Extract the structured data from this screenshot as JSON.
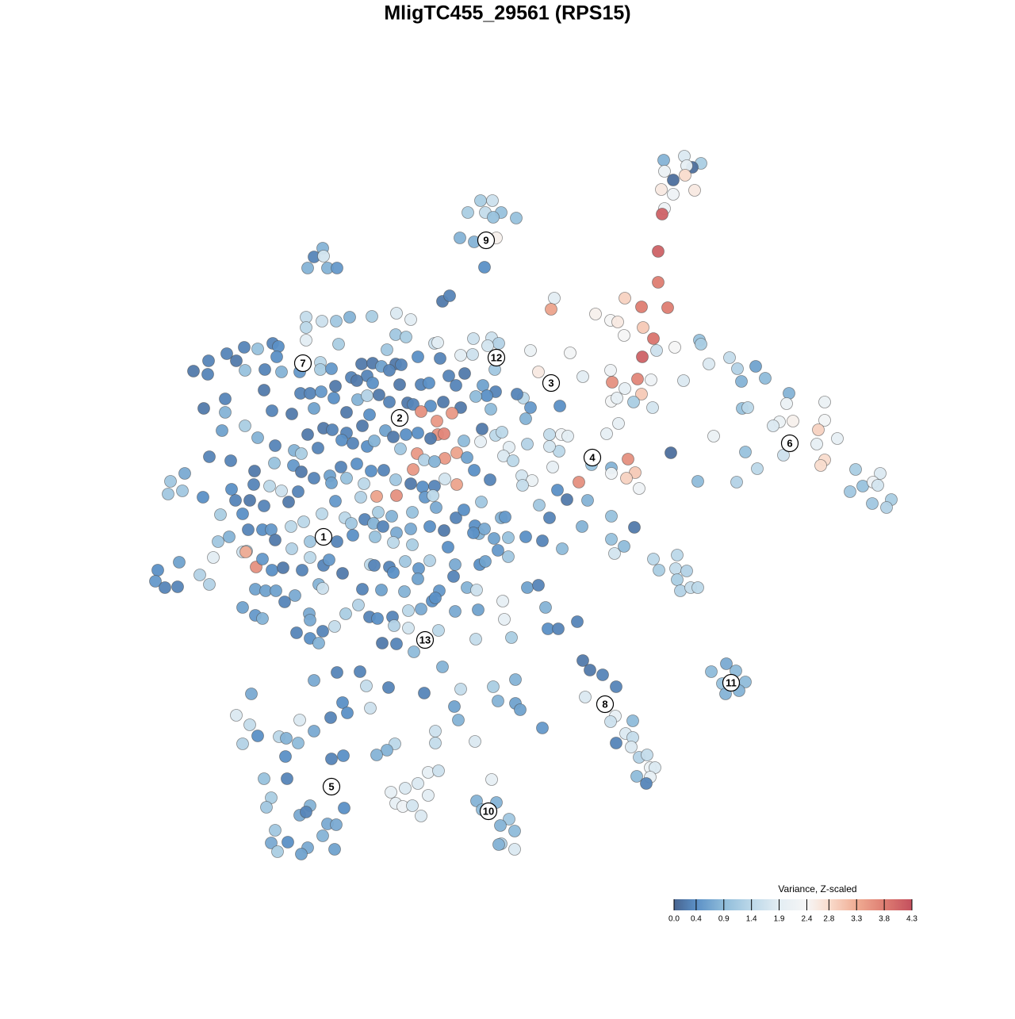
{
  "chart_data": {
    "type": "scatter",
    "title": "MligTC455_29561 (RPS15)",
    "xlim": [
      180,
      1150
    ],
    "ylim": [
      1100,
      170
    ],
    "x": [
      837,
      863,
      884,
      873,
      838,
      866,
      849,
      864,
      834,
      849,
      876,
      838,
      835,
      830,
      830,
      809,
      842,
      788,
      811,
      824,
      828,
      851,
      810,
      770,
      751,
      779,
      787,
      699,
      695,
      669,
      719,
      679,
      735,
      770,
      772,
      804,
      821,
      809,
      788,
      799,
      771,
      778,
      823,
      780,
      765,
      862,
      882,
      884,
      894,
      920,
      930,
      953,
      935,
      965,
      936,
      943,
      995,
      992,
      1040,
      983,
      975,
      1000,
      1040,
      1032,
      1056,
      995,
      988,
      1030,
      940,
      1040,
      1035,
      900,
      955,
      929,
      880,
      1079,
      1088,
      1110,
      1101,
      1107,
      1072,
      1124,
      1118,
      1100,
      746,
      771,
      771,
      792,
      801,
      790,
      806,
      730,
      741,
      703,
      715,
      693,
      708,
      716,
      705,
      693,
      697,
      665,
      660,
      652,
      669,
      663,
      706,
      846,
      771,
      800,
      734,
      771,
      775,
      787,
      709,
      680,
      693,
      663,
      684,
      824,
      831,
      854,
      852,
      866,
      854,
      858,
      871,
      880,
      916,
      897,
      928,
      911,
      940,
      915,
      932,
      735,
      744,
      760,
      777,
      738,
      760,
      776,
      770,
      798,
      789,
      777,
      798,
      796,
      806,
      816,
      820,
      826,
      820,
      803,
      815,
      606,
      621,
      590,
      612,
      632,
      622,
      651,
      580,
      598,
      626,
      611,
      407,
      396,
      408,
      388,
      413,
      425,
      601,
      626,
      620,
      608,
      642,
      631,
      649,
      632,
      629,
      649,
      298,
      315,
      306,
      325,
      352,
      361,
      376,
      378,
      396,
      418,
      433,
      360,
      333,
      362,
      342,
      336,
      391,
      378,
      386,
      434,
      347,
      413,
      424,
      407,
      363,
      342,
      350,
      388,
      422,
      380,
      493,
      499,
      508,
      520,
      531,
      540,
      511,
      527,
      540,
      553,
      498,
      488,
      475,
      549,
      549,
      599,
      317,
      396,
      425,
      454,
      462,
      490,
      535,
      432,
      438,
      417,
      467,
      581,
      573,
      578,
      622,
      628,
      650,
      650,
      656,
      684,
      558,
      558,
      567,
      386,
      406,
      424,
      441,
      469,
      500,
      518,
      386,
      386,
      499,
      512,
      548,
      552,
      597,
      620,
      629,
      581,
      596,
      615,
      624,
      286,
      308,
      325,
      344,
      351,
      427,
      488,
      263,
      298,
      349,
      404,
      404,
      418,
      456,
      470,
      481,
      499,
      506,
      527,
      555,
      244,
      262,
      309,
      334,
      355,
      378,
      443,
      463,
      491,
      566,
      586,
      333,
      379,
      391,
      405,
      423,
      450,
      470,
      504,
      531,
      541,
      575,
      609,
      625,
      614,
      600,
      284,
      257,
      343,
      368,
      396,
      421,
      437,
      451,
      463,
      478,
      491,
      514,
      521,
      543,
      559,
      581,
      619,
      284,
      309,
      280,
      325,
      388,
      408,
      419,
      437,
      466,
      457,
      486,
      496,
      512,
      527,
      552,
      560,
      531,
      551,
      570,
      543,
      608,
      625,
      633,
      642,
      606,
      585,
      264,
      291,
      347,
      371,
      380,
      401,
      431,
      445,
      463,
      472,
      505,
      526,
      561,
      576,
      535,
      548,
      589,
      635,
      647,
      233,
      215,
      212,
      230,
      256,
      292,
      321,
      346,
      370,
      380,
      396,
      416,
      430,
      437,
      450,
      468,
      484,
      499,
      521,
      548,
      561,
      576,
      598,
      618,
      658,
      671,
      659,
      320,
      340,
      355,
      376,
      418,
      459,
      475,
      500,
      518,
      533,
      536,
      546,
      278,
      306,
      297,
      315,
      333,
      364,
      423,
      455,
      477,
      494,
      520,
      550,
      575,
      585,
      607,
      632,
      637,
      313,
      331,
      342,
      367,
      383,
      406,
      435,
      443,
      460,
      471,
      483,
      500,
      518,
      542,
      560,
      599,
      604,
      611,
      623,
      641,
      289,
      275,
      306,
      347,
      368,
      391,
      425,
      445,
      473,
      496,
      520,
      565,
      597,
      628,
      641,
      311,
      269,
      310,
      323,
      331,
      343,
      357,
      381,
      391,
      408,
      415,
      432,
      467,
      472,
      491,
      496,
      511,
      528,
      542,
      574,
      605,
      612,
      252,
      264,
      199,
      196,
      208,
      224,
      226,
      322,
      335,
      348,
      372,
      402,
      407,
      457,
      481,
      510,
      527,
      554,
      572,
      589,
      601,
      306,
      322,
      331,
      359,
      390,
      391,
      436,
      452,
      466,
      476,
      495,
      515,
      531,
      545,
      549,
      574,
      603,
      634,
      636,
      665,
      679,
      688,
      374,
      391,
      402,
      407,
      422,
      482,
      497,
      500,
      515,
      522,
      553,
      600,
      645,
      691,
      704,
      728
    ],
    "y": [
      202,
      197,
      206,
      211,
      216,
      209,
      227,
      221,
      239,
      245,
      240,
      263,
      270,
      317,
      356,
      387,
      388,
      376,
      413,
      427,
      442,
      438,
      450,
      404,
      396,
      406,
      423,
      376,
      390,
      442,
      445,
      469,
      475,
      467,
      482,
      478,
      479,
      497,
      490,
      507,
      506,
      502,
      514,
      534,
      547,
      480,
      429,
      434,
      459,
      451,
      465,
      462,
      481,
      477,
      515,
      514,
      496,
      509,
      507,
      532,
      537,
      531,
      530,
      542,
      553,
      560,
      574,
      560,
      570,
      580,
      587,
      550,
      591,
      608,
      607,
      592,
      613,
      597,
      608,
      612,
      620,
      630,
      640,
      635,
      586,
      590,
      597,
      579,
      596,
      603,
      616,
      608,
      631,
      618,
      630,
      548,
      548,
      550,
      569,
      563,
      589,
      560,
      502,
      497,
      514,
      528,
      512,
      571,
      651,
      665,
      664,
      680,
      698,
      689,
      692,
      637,
      653,
      677,
      682,
      705,
      719,
      700,
      717,
      720,
      731,
      745,
      741,
      741,
      837,
      847,
      846,
      862,
      860,
      875,
      871,
      833,
      845,
      851,
      866,
      879,
      888,
      903,
      910,
      909,
      925,
      937,
      930,
      942,
      955,
      952,
      968,
      968,
      980,
      979,
      988,
      253,
      253,
      268,
      268,
      268,
      274,
      275,
      300,
      305,
      300,
      337,
      313,
      324,
      323,
      338,
      338,
      338,
      1010,
      1012,
      983,
      1021,
      1033,
      1041,
      1048,
      1064,
      1065,
      1071,
      902,
      914,
      938,
      928,
      929,
      931,
      937,
      908,
      922,
      957,
      953,
      954,
      982,
      982,
      1006,
      1018,
      1016,
      1028,
      1024,
      1019,
      1047,
      1039,
      1040,
      1054,
      1062,
      1063,
      1074,
      1069,
      1071,
      1077,
      999,
      1013,
      1017,
      1016,
      1029,
      1003,
      994,
      988,
      974,
      972,
      938,
      946,
      952,
      922,
      937,
      935,
      875,
      858,
      848,
      847,
      865,
      867,
      874,
      886,
      899,
      905,
      893,
      869,
      891,
      908,
      866,
      884,
      857,
      887,
      895,
      918,
      841,
      380,
      373,
      400,
      405,
      405,
      400,
      399,
      395,
      403,
      413,
      429,
      422,
      425,
      433,
      432,
      427,
      426,
      433,
      448,
      447,
      436,
      466,
      446,
      438,
      440,
      433,
      437,
      434,
      441,
      455,
      455,
      450,
      457,
      466,
      465,
      459,
      458,
      462,
      459,
      460,
      450,
      452,
      468,
      472,
      467,
      466,
      469,
      469,
      476,
      474,
      467,
      474,
      471,
      492,
      496,
      496,
      494,
      487,
      480,
      483,
      485,
      485,
      483,
      486,
      486,
      494,
      499,
      500,
      503,
      515,
      518,
      522,
      515,
      502,
      520,
      504,
      499,
      498,
      507,
      508,
      510,
      512,
      507,
      514,
      516,
      520,
      537,
      543,
      552,
      548,
      540,
      542,
      546,
      523,
      537,
      543,
      551,
      548,
      546,
      548,
      547,
      519,
      531,
      521,
      553,
      541,
      549,
      545,
      564,
      557,
      556,
      576,
      581,
      562,
      568,
      572,
      565,
      555,
      559,
      563,
      556,
      566,
      572,
      578,
      571,
      580,
      582,
      577,
      575,
      581,
      597,
      607,
      623,
      619,
      627,
      617,
      594,
      584,
      587,
      595,
      603,
      600,
      589,
      603,
      585,
      594,
      593,
      605,
      592,
      613,
      604,
      611,
      593,
      605,
      600,
      606,
      612,
      611,
      613,
      619,
      620,
      609,
      610,
      626,
      625,
      610,
      614,
      627,
      625,
      649,
      648,
      631,
      631,
      638,
      633,
      632,
      627,
      646,
      651,
      646,
      640,
      653,
      643,
      633,
      653,
      652,
      668,
      668,
      668,
      664,
      658,
      648,
      653,
      660,
      655,
      660,
      664,
      672,
      667,
      664,
      669,
      663,
      673,
      667,
      679,
      678,
      677,
      683,
      696,
      681,
      692,
      683,
      683,
      675,
      677,
      684,
      687,
      690,
      672,
      694,
      702,
      695,
      703,
      696,
      715,
      705,
      719,
      716,
      719,
      703,
      713,
      706,
      723,
      712,
      713,
      715,
      722,
      708,
      717,
      707,
      712,
      712,
      708,
      725,
      737,
      719,
      733,
      741,
      740,
      709,
      743,
      745,
      745,
      751,
      737,
      742,
      743,
      744,
      746,
      730,
      745,
      727,
      741,
      744,
      766,
      776,
      780,
      759,
      774,
      782,
      774,
      763,
      778,
      780,
      778,
      770,
      768,
      758,
      754,
      771,
      769,
      758,
      781,
      741,
      738,
      766,
      798,
      805,
      811,
      796,
      790,
      811,
      789,
      812,
      792,
      822,
      795,
      806,
      804,
      793,
      793,
      784
    ],
    "values": [
      0.8,
      1.8,
      1.2,
      0.1,
      2.1,
      2.0,
      0.1,
      2.8,
      2.6,
      2.2,
      2.6,
      2.2,
      4.1,
      4.1,
      3.8,
      3.8,
      3.8,
      2.9,
      3.0,
      3.9,
      1.6,
      2.4,
      4.1,
      2.4,
      2.5,
      2.6,
      2.4,
      1.9,
      3.4,
      2.1,
      2.3,
      2.6,
      1.9,
      2.2,
      3.6,
      3.7,
      2.2,
      3.0,
      2.0,
      1.2,
      2.3,
      2.0,
      1.7,
      2.0,
      2.0,
      1.8,
      1.0,
      1.2,
      1.8,
      1.5,
      1.3,
      0.6,
      0.8,
      0.9,
      1.0,
      1.4,
      0.8,
      2.1,
      2.1,
      2.1,
      1.8,
      2.5,
      2.3,
      2.9,
      2.0,
      2.2,
      1.6,
      2.0,
      1.0,
      2.8,
      2.8,
      2.1,
      1.4,
      1.3,
      0.9,
      1.2,
      1.0,
      1.8,
      2.2,
      1.7,
      1.1,
      1.2,
      1.3,
      1.1,
      1.0,
      0.8,
      2.2,
      3.6,
      3.0,
      2.9,
      2.2,
      3.6,
      0.8,
      0.4,
      0.2,
      1.5,
      2.2,
      1.9,
      1.4,
      1.7,
      2.0,
      1.3,
      1.4,
      0.3,
      0.5,
      0.8,
      0.4,
      0.1,
      1.0,
      0.2,
      0.8,
      1.0,
      1.7,
      0.9,
      0.9,
      1.1,
      0.3,
      0.4,
      0.3,
      1.4,
      1.2,
      1.4,
      1.5,
      1.3,
      1.2,
      1.3,
      1.5,
      1.4,
      0.7,
      0.9,
      0.9,
      1.0,
      0.9,
      0.8,
      0.8,
      0.2,
      0.2,
      0.3,
      0.3,
      1.8,
      1.6,
      2.0,
      1.6,
      0.9,
      1.8,
      0.3,
      1.5,
      1.8,
      1.3,
      1.5,
      2.1,
      1.8,
      2.0,
      0.9,
      0.3,
      1.2,
      1.6,
      1.2,
      1.5,
      1.0,
      1.0,
      1.0,
      0.8,
      0.8,
      2.5,
      0.4,
      0.8,
      0.3,
      1.7,
      0.8,
      0.8,
      0.5,
      0.8,
      0.8,
      2.0,
      0.9,
      1.1,
      0.8,
      0.9,
      1.3,
      0.8,
      1.8,
      1.8,
      1.5,
      1.3,
      0.4,
      1.4,
      0.8,
      0.9,
      1.8,
      0.7,
      0.3,
      0.4,
      0.4,
      1.0,
      0.3,
      1.2,
      1.1,
      0.8,
      0.7,
      0.3,
      0.4,
      1.1,
      0.7,
      0.7,
      0.8,
      0.4,
      0.7,
      1.2,
      0.7,
      0.6,
      0.6,
      2.0,
      2.0,
      2.2,
      1.7,
      1.8,
      1.9,
      1.8,
      1.8,
      2.0,
      1.6,
      1.4,
      0.8,
      0.8,
      1.6,
      1.5,
      1.8,
      0.7,
      0.7,
      0.3,
      0.3,
      1.5,
      0.3,
      0.3,
      0.4,
      0.4,
      0.3,
      1.6,
      1.5,
      0.6,
      0.8,
      1.2,
      0.8,
      0.8,
      0.6,
      0.6,
      0.5,
      0.8,
      0.2,
      0.3,
      1.5,
      1.6,
      1.1,
      0.8,
      1.2,
      1.8,
      1.9,
      1.4,
      1.9,
      1.1,
      1.2,
      1.6,
      1.9,
      1.6,
      1.6,
      1.3,
      1.9,
      1.6,
      1.7,
      1.1,
      0.3,
      0.3,
      1.0,
      0.3,
      0.4,
      1.2,
      1.1,
      0.3,
      0.2,
      0.4,
      1.4,
      1.2,
      0.5,
      0.2,
      0.2,
      0.6,
      0.2,
      0.3,
      0.4,
      0.3,
      0.2,
      0.3,
      1.0,
      0.3,
      0.8,
      0.5,
      0.3,
      0.3,
      0.3,
      0.3,
      0.2,
      0.2,
      0.3,
      0.3,
      0.5,
      0.2,
      0.2,
      0.4,
      0.2,
      0.3,
      0.4,
      0.3,
      0.6,
      0.3,
      0.4,
      0.9,
      0.3,
      0.2,
      0.3,
      0.2,
      0.6,
      0.4,
      0.2,
      0.8,
      1.3,
      0.2,
      0.3,
      0.2,
      0.3,
      0.4,
      0.2,
      0.2,
      0.9,
      0.8,
      1.2,
      0.6,
      0.8,
      0.2,
      0.2,
      0.3,
      0.3,
      0.4,
      0.2,
      0.6,
      0.2,
      0.4,
      0.4,
      3.6,
      3.7,
      3.6,
      3.5,
      3.5,
      0.2,
      0.2,
      1.4,
      1.4,
      1.9,
      2.0,
      0.9,
      0.3,
      0.3,
      0.3,
      0.8,
      1.2,
      0.3,
      0.4,
      0.3,
      0.4,
      0.8,
      1.1,
      3.5,
      3.5,
      3.4,
      1.3,
      0.8,
      0.6,
      1.8,
      1.4,
      0.7,
      1.1,
      1.1,
      1.1,
      0.4,
      0.4,
      0.2,
      1.0,
      0.5,
      0.2,
      0.3,
      0.6,
      0.3,
      1.0,
      0.4,
      0.4,
      0.3,
      1.1,
      3.5,
      0.3,
      1.7,
      3.4,
      0.4,
      0.3,
      1.7,
      2.1,
      1.5,
      0.3,
      1.4,
      1.6,
      0.3,
      0.6,
      1.4,
      3.4,
      3.6,
      0.2,
      0.4,
      0.5,
      1.4,
      1.2,
      0.4,
      0.3,
      0.2,
      0.3,
      0.2,
      0.5,
      1.3,
      1.2,
      0.8,
      1.0,
      0.7,
      0.3,
      0.4,
      1.1,
      0.8,
      0.5,
      0.3,
      0.4,
      0.5,
      1.4,
      1.4,
      1.4,
      1.4,
      1.1,
      0.3,
      0.8,
      0.3,
      0.7,
      0.7,
      0.4,
      0.2,
      0.4,
      0.8,
      0.7,
      0.6,
      1.0,
      0.8,
      1.1,
      1.6,
      0.2,
      1.3,
      1.1,
      0.3,
      0.4,
      1.0,
      1.4,
      1.2,
      0.4,
      0.4,
      0.5,
      1.1,
      1.2,
      1.9,
      3.3,
      3.6,
      0.5,
      0.4,
      0.2,
      0.3,
      1.4,
      0.3,
      0.5,
      0.2,
      1.4,
      0.3,
      0.3,
      0.4,
      1.1,
      0.5,
      1.3,
      0.7,
      0.4,
      0.6,
      1.3,
      1.3,
      0.4,
      0.5,
      0.3,
      0.3,
      0.6,
      0.6,
      0.6,
      0.6,
      0.7,
      0.8,
      1.6,
      0.3,
      0.6,
      0.8,
      0.6,
      0.5,
      0.3,
      0.8,
      1.6,
      0.6,
      0.5,
      0.8,
      0.3,
      0.7,
      0.7,
      1.2,
      1.3,
      0.3,
      0.4,
      0.3,
      1.4,
      0.7,
      0.4,
      0.4,
      0.7,
      0.6,
      2.0,
      2.0,
      0.6,
      0.3,
      0.8,
      0.3,
      0.4,
      0.8,
      0.3,
      1.5,
      0.2,
      1.3,
      0.3,
      1.7,
      0.9,
      1.4,
      1.5,
      1.2,
      0.4,
      0.3,
      0.3
    ],
    "cluster_labels": [
      {
        "text": "1",
        "x": 408,
        "y": 677
      },
      {
        "text": "2",
        "x": 504,
        "y": 527
      },
      {
        "text": "3",
        "x": 695,
        "y": 483
      },
      {
        "text": "4",
        "x": 747,
        "y": 577
      },
      {
        "text": "5",
        "x": 418,
        "y": 992
      },
      {
        "text": "6",
        "x": 996,
        "y": 559
      },
      {
        "text": "7",
        "x": 382,
        "y": 458
      },
      {
        "text": "8",
        "x": 763,
        "y": 888
      },
      {
        "text": "9",
        "x": 613,
        "y": 303
      },
      {
        "text": "10",
        "x": 616,
        "y": 1023
      },
      {
        "text": "11",
        "x": 922,
        "y": 861
      },
      {
        "text": "12",
        "x": 626,
        "y": 451
      },
      {
        "text": "13",
        "x": 536,
        "y": 807
      }
    ],
    "colorbar": {
      "title": "Variance, Z-scaled",
      "lim": [
        0,
        4.3
      ],
      "ticks": [
        {
          "value": 0,
          "label": "0.0"
        },
        0.4,
        0.9,
        1.4,
        1.9,
        2.4,
        2.8,
        3.3,
        3.8,
        4.3
      ],
      "colors": [
        "#48648f",
        "#5b90c6",
        "#8fbcda",
        "#bcd8e9",
        "#e3edf3",
        "#f6f6f6",
        "#f9dccd",
        "#f0ac93",
        "#de7d72",
        "#c4505e"
      ]
    }
  }
}
